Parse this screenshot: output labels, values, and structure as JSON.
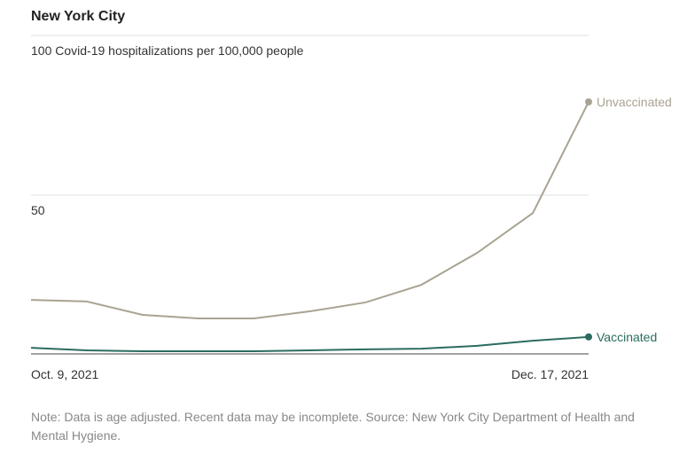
{
  "chart_data": {
    "type": "line",
    "title": "New York City",
    "categories": [
      "Oct. 9, 2021",
      null,
      null,
      null,
      null,
      null,
      null,
      null,
      null,
      null,
      "Dec. 17, 2021"
    ],
    "series": [
      {
        "name": "Unvaccinated",
        "color": "#a9a392",
        "values": [
          17.2,
          16.7,
          12.5,
          11.4,
          11.4,
          13.6,
          16.4,
          21.9,
          31.9,
          44.4,
          79.2
        ]
      },
      {
        "name": "Vaccinated",
        "color": "#2b6c60",
        "values": [
          2.2,
          1.4,
          1.1,
          1.1,
          1.1,
          1.4,
          1.7,
          1.9,
          2.8,
          4.4,
          5.6
        ]
      }
    ],
    "ylim": [
      0,
      100
    ],
    "yticks": [
      50,
      {
        "value": 100,
        "label": "100 Covid-19 hospitalizations per 100,000 people"
      }
    ],
    "grid": true,
    "note": "Note: Data is age adjusted. Recent data may be incomplete. Source: New York City Department of Health and Mental Hygiene."
  }
}
